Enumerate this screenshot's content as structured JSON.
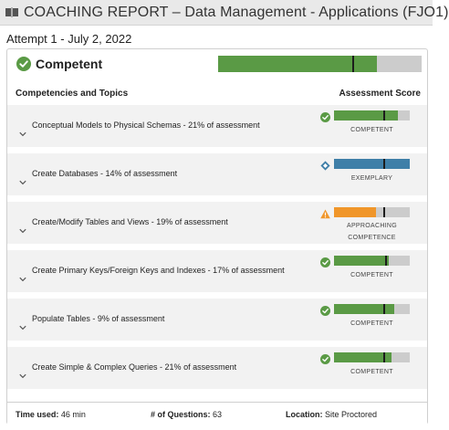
{
  "header": {
    "title": "COACHING REPORT – Data Management - Applications (FJO1)",
    "icon": "book-icon"
  },
  "attempt": "Attempt 1 - July 2, 2022",
  "overall": {
    "label": "Competent",
    "icon": "check-circle-icon",
    "score_fraction": 0.78,
    "cut_fraction": 0.66,
    "color": "#5a9a45"
  },
  "columns": {
    "left": "Competencies and Topics",
    "right": "Assessment Score"
  },
  "colors": {
    "competent": "#5a9a45",
    "exemplary": "#3f7fa8",
    "approaching": "#f0962a",
    "track": "#cccccc"
  },
  "competencies": [
    {
      "label": "Conceptual Models to Physical Schemas - 21% of assessment",
      "level": "COMPETENT",
      "status": "competent",
      "icon": "check-circle-icon",
      "score_fraction": 0.84,
      "cut_fraction": 0.65
    },
    {
      "label": "Create Databases - 14% of assessment",
      "level": "EXEMPLARY",
      "status": "exemplary",
      "icon": "diamond-icon",
      "score_fraction": 1.0,
      "cut_fraction": 0.65
    },
    {
      "label": "Create/Modify Tables and Views - 19% of assessment",
      "level_lines": [
        "APPROACHING",
        "COMPETENCE"
      ],
      "status": "approaching",
      "icon": "warning-icon",
      "score_fraction": 0.56,
      "cut_fraction": 0.65
    },
    {
      "label": "Create Primary Keys/Foreign Keys and Indexes - 17% of assessment",
      "level": "COMPETENT",
      "status": "competent",
      "icon": "check-circle-icon",
      "score_fraction": 0.72,
      "cut_fraction": 0.68
    },
    {
      "label": "Populate Tables - 9% of assessment",
      "level": "COMPETENT",
      "status": "competent",
      "icon": "check-circle-icon",
      "score_fraction": 0.8,
      "cut_fraction": 0.65
    },
    {
      "label": "Create Simple & Complex Queries - 21% of assessment",
      "level": "COMPETENT",
      "status": "competent",
      "icon": "check-circle-icon",
      "score_fraction": 0.76,
      "cut_fraction": 0.65
    }
  ],
  "footer": {
    "time_label": "Time used:",
    "time_value": "46 min",
    "questions_label": "# of Questions:",
    "questions_value": "63",
    "location_label": "Location:",
    "location_value": "Site Proctored"
  }
}
